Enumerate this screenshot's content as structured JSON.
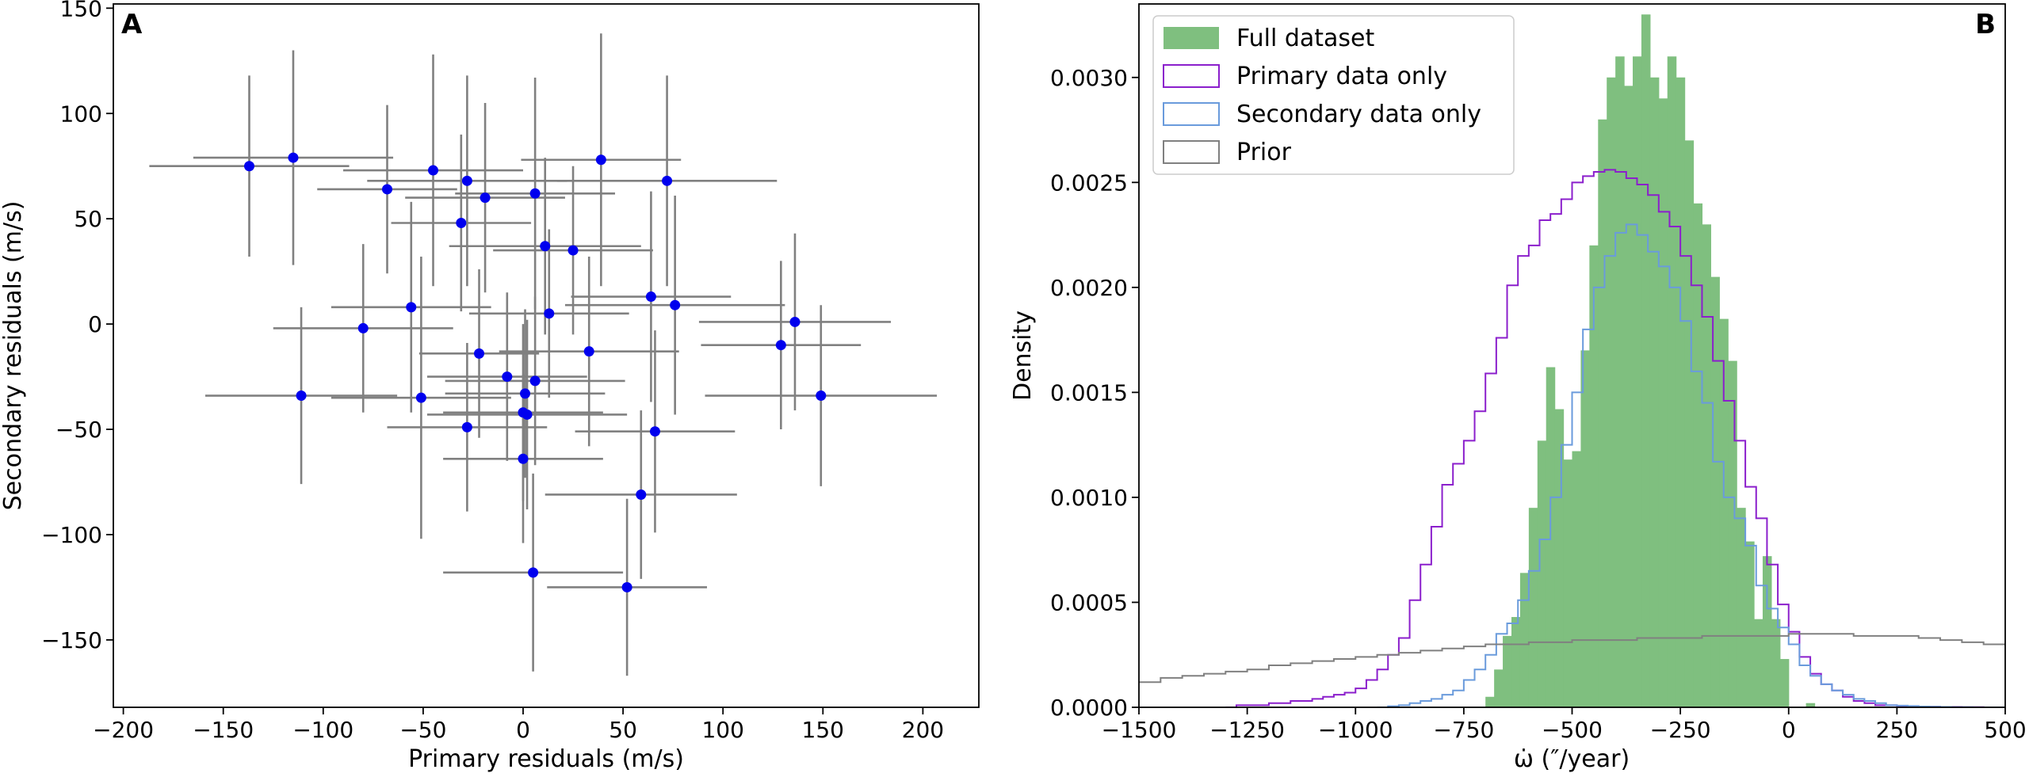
{
  "chart_data": [
    {
      "panel_label": "A",
      "type": "scatter",
      "title": "",
      "xlabel": "Primary residuals (m/s)",
      "ylabel": "Secondary residuals (m/s)",
      "xlim": [
        -205,
        228
      ],
      "ylim": [
        -182,
        152
      ],
      "xticks": [
        -200,
        -150,
        -100,
        -50,
        0,
        50,
        100,
        150,
        200
      ],
      "yticks": [
        -150,
        -100,
        -50,
        0,
        50,
        100,
        150
      ],
      "xtick_labels": [
        "−200",
        "−150",
        "−100",
        "−50",
        "0",
        "50",
        "100",
        "150",
        "200"
      ],
      "ytick_labels": [
        "−150",
        "−100",
        "−50",
        "0",
        "50",
        "100",
        "150"
      ],
      "point_color": "#0000ee",
      "errorbar_color": "#808080",
      "points": [
        {
          "x": -137,
          "y": 75,
          "xerr": 50,
          "yerr": 43
        },
        {
          "x": -115,
          "y": 79,
          "xerr": 50,
          "yerr": 51
        },
        {
          "x": -111,
          "y": -34,
          "xerr": 48,
          "yerr": 42
        },
        {
          "x": -80,
          "y": -2,
          "xerr": 45,
          "yerr": 40
        },
        {
          "x": -68,
          "y": 64,
          "xerr": 35,
          "yerr": 40
        },
        {
          "x": -56,
          "y": 8,
          "xerr": 40,
          "yerr": 50
        },
        {
          "x": -51,
          "y": -35,
          "xerr": 45,
          "yerr": 67
        },
        {
          "x": -45,
          "y": 73,
          "xerr": 45,
          "yerr": 55
        },
        {
          "x": -31,
          "y": 48,
          "xerr": 35,
          "yerr": 42
        },
        {
          "x": -28,
          "y": 68,
          "xerr": 50,
          "yerr": 50
        },
        {
          "x": -28,
          "y": -49,
          "xerr": 40,
          "yerr": 40
        },
        {
          "x": -22,
          "y": -14,
          "xerr": 30,
          "yerr": 40
        },
        {
          "x": -19,
          "y": 60,
          "xerr": 40,
          "yerr": 45
        },
        {
          "x": -8,
          "y": -25,
          "xerr": 40,
          "yerr": 40
        },
        {
          "x": 0,
          "y": -42,
          "xerr": 40,
          "yerr": 42
        },
        {
          "x": 0,
          "y": -64,
          "xerr": 40,
          "yerr": 40
        },
        {
          "x": 1,
          "y": -33,
          "xerr": 40,
          "yerr": 40
        },
        {
          "x": 2,
          "y": -43,
          "xerr": 50,
          "yerr": 45
        },
        {
          "x": 5,
          "y": -118,
          "xerr": 45,
          "yerr": 47
        },
        {
          "x": 6,
          "y": 62,
          "xerr": 40,
          "yerr": 55
        },
        {
          "x": 6,
          "y": -27,
          "xerr": 45,
          "yerr": 40
        },
        {
          "x": 11,
          "y": 37,
          "xerr": 48,
          "yerr": 42
        },
        {
          "x": 13,
          "y": 5,
          "xerr": 40,
          "yerr": 40
        },
        {
          "x": 25,
          "y": 35,
          "xerr": 40,
          "yerr": 40
        },
        {
          "x": 33,
          "y": -13,
          "xerr": 45,
          "yerr": 45
        },
        {
          "x": 39,
          "y": 78,
          "xerr": 40,
          "yerr": 60
        },
        {
          "x": 52,
          "y": -125,
          "xerr": 40,
          "yerr": 42
        },
        {
          "x": 59,
          "y": -81,
          "xerr": 48,
          "yerr": 40
        },
        {
          "x": 64,
          "y": 13,
          "xerr": 40,
          "yerr": 50
        },
        {
          "x": 66,
          "y": -51,
          "xerr": 40,
          "yerr": 48
        },
        {
          "x": 72,
          "y": 68,
          "xerr": 55,
          "yerr": 50
        },
        {
          "x": 76,
          "y": 9,
          "xerr": 55,
          "yerr": 52
        },
        {
          "x": 129,
          "y": -10,
          "xerr": 40,
          "yerr": 40
        },
        {
          "x": 136,
          "y": 1,
          "xerr": 48,
          "yerr": 42
        },
        {
          "x": 149,
          "y": -34,
          "xerr": 58,
          "yerr": 43
        }
      ]
    },
    {
      "panel_label": "B",
      "type": "histogram",
      "title": "",
      "xlabel": "ω̇ (″/year)",
      "ylabel": "Density",
      "xlim": [
        -1500,
        500
      ],
      "ylim": [
        0,
        0.00335
      ],
      "xticks": [
        -1500,
        -1250,
        -1000,
        -750,
        -500,
        -250,
        0,
        250,
        500
      ],
      "yticks": [
        0,
        0.0005,
        0.001,
        0.0015,
        0.002,
        0.0025,
        0.003
      ],
      "xtick_labels": [
        "−1500",
        "−1250",
        "−1000",
        "−750",
        "−500",
        "−250",
        "0",
        "250",
        "500"
      ],
      "ytick_labels": [
        "0.0000",
        "0.0005",
        "0.0010",
        "0.0015",
        "0.0020",
        "0.0025",
        "0.0030"
      ],
      "legend_position": "top-left",
      "series": [
        {
          "name": "Full dataset",
          "style": "filled",
          "color": "#7fbf7f",
          "x": [
            -700,
            -680,
            -660,
            -640,
            -620,
            -600,
            -580,
            -560,
            -540,
            -520,
            -500,
            -480,
            -460,
            -440,
            -420,
            -400,
            -380,
            -360,
            -340,
            -320,
            -300,
            -280,
            -260,
            -240,
            -220,
            -200,
            -180,
            -160,
            -140,
            -120,
            -100,
            -80,
            -60,
            -40,
            -20,
            0,
            20,
            40,
            60,
            80
          ],
          "y": [
            5e-05,
            0.00018,
            0.00034,
            0.00043,
            0.00064,
            0.00095,
            0.00127,
            0.00162,
            0.00142,
            0.00118,
            0.00122,
            0.0017,
            0.0022,
            0.0028,
            0.003,
            0.0031,
            0.00296,
            0.0031,
            0.0033,
            0.003,
            0.0029,
            0.0031,
            0.003,
            0.0027,
            0.0024,
            0.0023,
            0.00205,
            0.00185,
            0.00165,
            0.00095,
            0.00079,
            0.00042,
            0.00072,
            0.00042,
            0.00023,
            0.0,
            0.0,
            2e-05,
            0.0,
            0.0
          ]
        },
        {
          "name": "Primary data only",
          "style": "step",
          "color": "#8b1fcc",
          "x": [
            -1300,
            -1250,
            -1200,
            -1150,
            -1100,
            -1050,
            -1000,
            -975,
            -950,
            -925,
            -900,
            -875,
            -850,
            -825,
            -800,
            -775,
            -750,
            -725,
            -700,
            -675,
            -650,
            -625,
            -600,
            -575,
            -550,
            -525,
            -500,
            -475,
            -450,
            -425,
            -400,
            -375,
            -350,
            -325,
            -300,
            -275,
            -250,
            -225,
            -200,
            -175,
            -150,
            -125,
            -100,
            -75,
            -50,
            -25,
            0,
            25,
            50,
            75,
            100,
            125,
            150,
            200,
            250,
            300,
            350,
            400,
            450
          ],
          "y": [
            0.0,
            1e-05,
            2e-05,
            3e-05,
            4e-05,
            5e-05,
            6e-05,
            7e-05,
            9e-05,
            0.00013,
            0.00018,
            0.00025,
            0.00033,
            0.00051,
            0.00068,
            0.00095,
            0.00106,
            0.00123,
            0.00133,
            0.00137,
            0.00147,
            0.00148,
            0.00159,
            0.00166,
            0.00172,
            0.00178,
            0.00181,
            0.00189,
            0.00197,
            0.00204,
            0.00203,
            0.00196,
            0.00198,
            0.00193,
            0.00185,
            0.00171,
            0.00161,
            0.0014,
            0.00132,
            0.00118,
            0.00091,
            0.00073,
            0.00056,
            0.00043,
            0.0003,
            0.00026,
            0.00019,
            0.00014,
            0.0001,
            7e-05,
            5e-05,
            3e-05,
            2e-05,
            1e-05,
            8e-06,
            5e-06,
            3e-06,
            2e-06,
            0.0
          ],
          "step_x": [
            -1300,
            -1275,
            -1250,
            -1225,
            -1200,
            -1175,
            -1150,
            -1125,
            -1100,
            -1075,
            -1050,
            -1025,
            -1000,
            -975,
            -950,
            -925,
            -900,
            -875,
            -850,
            -825,
            -800,
            -775,
            -750,
            -725,
            -700,
            -675,
            -650,
            -625,
            -600,
            -575,
            -550,
            -525,
            -500,
            -475,
            -450,
            -425,
            -400,
            -375,
            -350,
            -325,
            -300,
            -275,
            -250,
            -225,
            -200,
            -175,
            -150,
            -125,
            -100,
            -75,
            -50,
            -25,
            0,
            25,
            50,
            75,
            100,
            125,
            150,
            175,
            200,
            250,
            300,
            350,
            400,
            450,
            500
          ],
          "step_y": [
            0.0,
            1e-05,
            1e-05,
            1e-05,
            2e-05,
            2e-05,
            3e-05,
            3e-05,
            4e-05,
            5e-05,
            6e-05,
            7e-05,
            9e-05,
            0.00013,
            0.00018,
            0.00025,
            0.00033,
            0.00051,
            0.00068,
            0.00086,
            0.00106,
            0.00116,
            0.00127,
            0.00141,
            0.00159,
            0.00176,
            0.00201,
            0.00215,
            0.0022,
            0.00232,
            0.00235,
            0.00242,
            0.0025,
            0.00253,
            0.00255,
            0.00256,
            0.00255,
            0.00252,
            0.00249,
            0.00244,
            0.00236,
            0.00229,
            0.00215,
            0.00201,
            0.00186,
            0.00165,
            0.00146,
            0.00127,
            0.00105,
            0.0009,
            0.00068,
            0.00049,
            0.00036,
            0.00024,
            0.00016,
            0.00011,
            8e-05,
            5e-05,
            3e-05,
            2e-05,
            1e-05,
            5e-06,
            3e-06,
            2e-06,
            1e-06,
            0.0,
            0.0
          ]
        },
        {
          "name": "Secondary data only",
          "style": "step",
          "color": "#6a9bdc",
          "step_x": [
            -950,
            -925,
            -900,
            -875,
            -850,
            -825,
            -800,
            -775,
            -750,
            -725,
            -700,
            -675,
            -650,
            -625,
            -600,
            -575,
            -550,
            -525,
            -500,
            -475,
            -450,
            -425,
            -400,
            -375,
            -350,
            -325,
            -300,
            -275,
            -250,
            -225,
            -200,
            -175,
            -150,
            -125,
            -100,
            -75,
            -50,
            -25,
            0,
            25,
            50,
            75,
            100,
            125,
            150,
            175,
            200,
            225,
            250,
            275,
            300,
            325,
            350,
            375,
            400,
            425,
            450,
            475
          ],
          "step_y": [
            0.0,
            5e-06,
            1e-05,
            2e-05,
            3e-05,
            4e-05,
            6e-05,
            8e-05,
            0.00013,
            0.00018,
            0.00025,
            0.00035,
            0.0004,
            0.00051,
            0.00065,
            0.0008,
            0.001,
            0.00125,
            0.0015,
            0.0018,
            0.002,
            0.00215,
            0.00226,
            0.0023,
            0.00225,
            0.00217,
            0.0021,
            0.002,
            0.00184,
            0.0016,
            0.00145,
            0.00117,
            0.001,
            0.0009,
            0.00077,
            0.00058,
            0.00047,
            0.00038,
            0.0003,
            0.0002,
            0.00015,
            0.00011,
            8e-05,
            6e-05,
            4e-05,
            3e-05,
            2e-05,
            1e-05,
            8e-06,
            6e-06,
            4e-06,
            3e-06,
            2e-06,
            1e-06,
            1e-06,
            0.0,
            0.0,
            0.0
          ]
        },
        {
          "name": "Prior",
          "style": "step",
          "color": "#808080",
          "step_x": [
            -1500,
            -1450,
            -1400,
            -1350,
            -1300,
            -1250,
            -1200,
            -1150,
            -1100,
            -1050,
            -1000,
            -950,
            -900,
            -850,
            -800,
            -750,
            -700,
            -650,
            -600,
            -550,
            -500,
            -450,
            -400,
            -350,
            -300,
            -250,
            -200,
            -150,
            -100,
            -50,
            0,
            50,
            100,
            150,
            200,
            250,
            300,
            350,
            400,
            450,
            500
          ],
          "step_y": [
            0.00012,
            0.00014,
            0.00015,
            0.00016,
            0.00017,
            0.00018,
            0.0002,
            0.00021,
            0.00022,
            0.00023,
            0.00024,
            0.00025,
            0.00026,
            0.00027,
            0.00028,
            0.00029,
            0.0003,
            0.0003,
            0.00031,
            0.00031,
            0.00032,
            0.00032,
            0.00032,
            0.00033,
            0.00033,
            0.00033,
            0.00034,
            0.00034,
            0.00034,
            0.00034,
            0.00035,
            0.00035,
            0.00035,
            0.00034,
            0.00034,
            0.00034,
            0.00033,
            0.00032,
            0.00031,
            0.0003,
            0.0003
          ]
        }
      ]
    }
  ]
}
